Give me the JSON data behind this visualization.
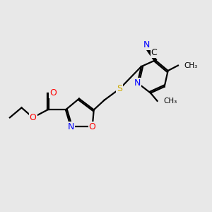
{
  "background_color": "#e8e8e8",
  "bond_color": "#000000",
  "atom_colors": {
    "N": "#0000ff",
    "O": "#ff0000",
    "S": "#ccaa00",
    "C": "#000000"
  },
  "figsize": [
    3.0,
    3.0
  ],
  "dpi": 100
}
